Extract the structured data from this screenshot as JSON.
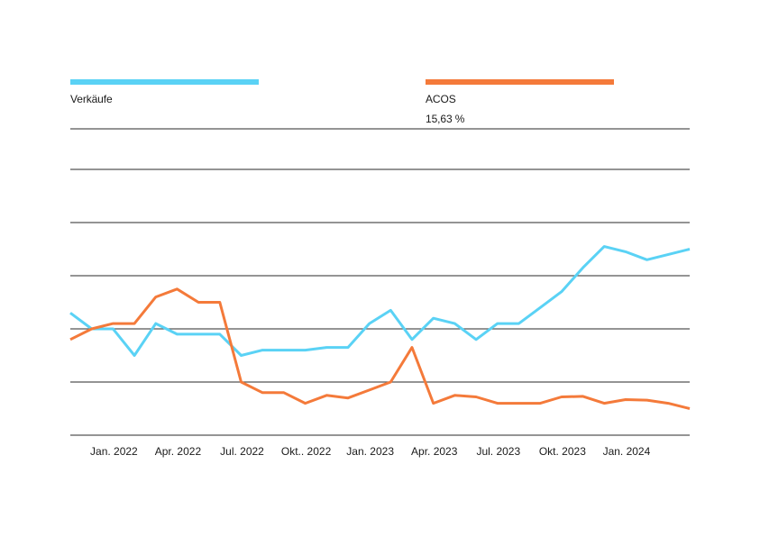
{
  "colors": {
    "sales": "#5AD2F5",
    "acos": "#F47A3A",
    "grid": "#555555",
    "text": "#1a1a1a"
  },
  "legend": {
    "sales_label": "Verkäufe",
    "acos_label": "ACOS",
    "acos_value": "15,63 %"
  },
  "chart_data": {
    "type": "line",
    "grid": true,
    "legend_position": "top",
    "ylim": [
      0,
      7
    ],
    "x_tick_labels": [
      "Jan. 2022",
      "Apr. 2022",
      "Jul. 2022",
      "Okt.. 2022",
      "Jan. 2023",
      "Apr. 2023",
      "Jul. 2023",
      "Okt. 2023",
      "Jan. 2024"
    ],
    "x": [
      "2021-11",
      "2021-12",
      "2022-01",
      "2022-02",
      "2022-03",
      "2022-04",
      "2022-05",
      "2022-06",
      "2022-07",
      "2022-08",
      "2022-09",
      "2022-10",
      "2022-11",
      "2022-12",
      "2023-01",
      "2023-02",
      "2023-03",
      "2023-04",
      "2023-05",
      "2023-06",
      "2023-07",
      "2023-08",
      "2023-09",
      "2023-10",
      "2023-11",
      "2023-12",
      "2024-01",
      "2024-02",
      "2024-03",
      "2024-04"
    ],
    "series": [
      {
        "name": "Verkäufe",
        "color": "#5AD2F5",
        "values": [
          2.3,
          2.0,
          2.0,
          1.5,
          2.1,
          1.9,
          1.9,
          1.9,
          1.5,
          1.6,
          1.6,
          1.6,
          1.65,
          1.65,
          2.1,
          2.35,
          1.8,
          2.2,
          2.1,
          1.8,
          2.1,
          2.1,
          2.4,
          2.7,
          3.15,
          3.55,
          3.45,
          3.3,
          3.4,
          3.5
        ]
      },
      {
        "name": "ACOS",
        "color": "#F47A3A",
        "values": [
          1.8,
          2.0,
          2.1,
          2.1,
          2.6,
          2.75,
          2.5,
          2.5,
          1.0,
          0.8,
          0.8,
          0.6,
          0.75,
          0.7,
          0.85,
          1.0,
          1.65,
          0.6,
          0.75,
          0.72,
          0.6,
          0.6,
          0.6,
          0.72,
          0.73,
          0.6,
          0.67,
          0.66,
          0.6,
          0.5
        ]
      }
    ]
  }
}
